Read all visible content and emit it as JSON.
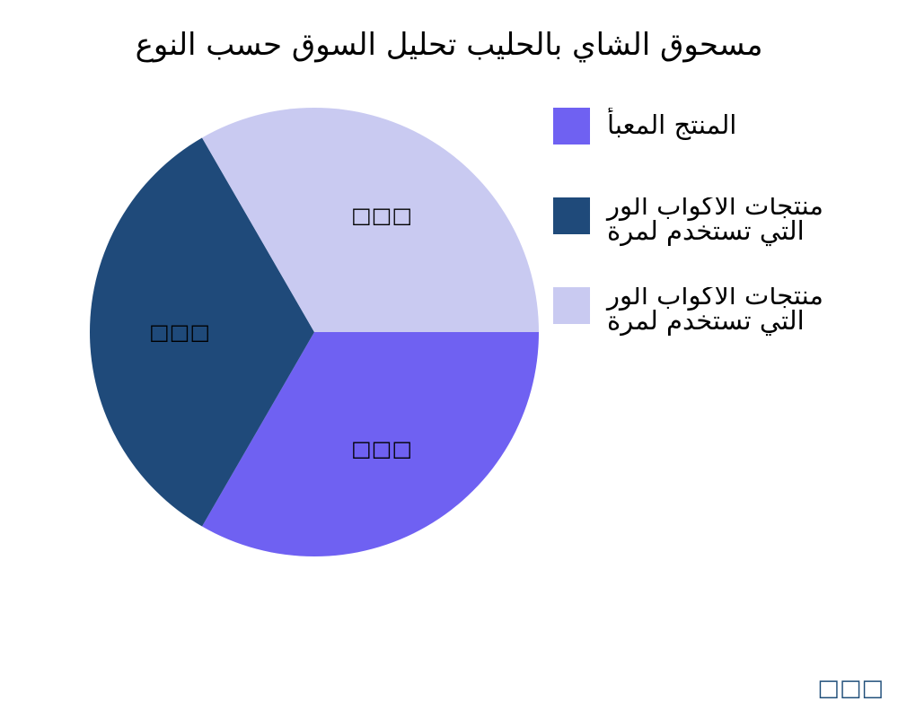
{
  "chart_data": {
    "type": "pie",
    "title": "مسحوق الشاي بالحليب تحليل السوق حسب النوع",
    "start_angle_deg": 0,
    "direction": "clockwise",
    "legend_position": "right",
    "slices": [
      {
        "name": "المنتج المعبأ",
        "legend_lines": [
          "المنتج المعبأ"
        ],
        "value": 33.33,
        "label": "□□□",
        "color": "#6f61f2"
      },
      {
        "name": "منتجات الأكواب الورقية التي تستخدم لمرة واحدة",
        "legend_lines": [
          "منتجات الأكواب الور",
          "التي تستخدم لمرة"
        ],
        "value": 33.33,
        "label": "□□□",
        "color": "#1f4a7a"
      },
      {
        "name": "منتجات الأكواب الورقية التي تستخدم لمرة واحدة",
        "legend_lines": [
          "منتجات الأكواب الور",
          "التي تستخدم لمرة"
        ],
        "value": 33.33,
        "label": "□□□",
        "color": "#c9caf1"
      }
    ]
  },
  "footer": "□□□"
}
